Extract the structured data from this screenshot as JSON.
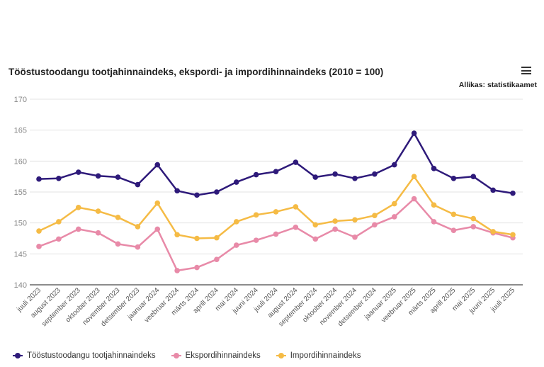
{
  "header": {
    "title": "Tööstustoodangu tootjahinnaindeks, ekspordi- ja impordihinnaindeks (2010 = 100)",
    "source": "Allikas: statistikaamet",
    "menu_icon": "hamburger-icon"
  },
  "chart_data": {
    "type": "line",
    "title": "Tööstustoodangu tootjahinnaindeks, ekspordi- ja impordihinnaindeks (2010 = 100)",
    "xlabel": "",
    "ylabel": "",
    "ylim": [
      140,
      170
    ],
    "yticks": [
      140,
      145,
      150,
      155,
      160,
      165,
      170
    ],
    "grid": true,
    "legend_placement": "bottom-left",
    "categories": [
      "juuli 2023",
      "august 2023",
      "september 2023",
      "oktoober 2023",
      "november 2023",
      "detsember 2023",
      "jaanuar 2024",
      "veebruar 2024",
      "märts 2024",
      "aprill 2024",
      "mai 2024",
      "juuni 2024",
      "juuli 2024",
      "august 2024",
      "september 2024",
      "oktoober 2024",
      "november 2024",
      "detsember 2024",
      "jaanuar 2025",
      "veebruar 2025",
      "märts 2025",
      "aprill 2025",
      "mai 2025",
      "juuni 2025",
      "juuli 2025"
    ],
    "series": [
      {
        "name": "Tööstustoodangu tootjahinnaindeks",
        "color": "#2e1a7a",
        "values": [
          157.1,
          157.2,
          158.2,
          157.6,
          157.4,
          156.2,
          159.4,
          155.2,
          154.5,
          155.0,
          156.6,
          157.8,
          158.3,
          159.8,
          157.4,
          157.9,
          157.2,
          157.9,
          159.4,
          164.5,
          158.8,
          157.2,
          157.5,
          155.3,
          154.8
        ]
      },
      {
        "name": "Ekspordihinnaindeks",
        "color": "#e88aa8",
        "values": [
          146.2,
          147.4,
          149.0,
          148.4,
          146.6,
          146.1,
          149.0,
          142.3,
          142.8,
          144.1,
          146.4,
          147.2,
          148.2,
          149.3,
          147.4,
          149.0,
          147.7,
          149.7,
          151.0,
          153.9,
          150.2,
          148.8,
          149.4,
          148.4,
          147.6
        ]
      },
      {
        "name": "Impordihinnaindeks",
        "color": "#f5bb45",
        "values": [
          148.7,
          150.2,
          152.5,
          151.9,
          150.9,
          149.4,
          153.2,
          148.1,
          147.5,
          147.6,
          150.2,
          151.3,
          151.8,
          152.6,
          149.7,
          150.3,
          150.5,
          151.2,
          153.1,
          157.5,
          152.9,
          151.4,
          150.7,
          148.6,
          148.1
        ]
      }
    ]
  }
}
